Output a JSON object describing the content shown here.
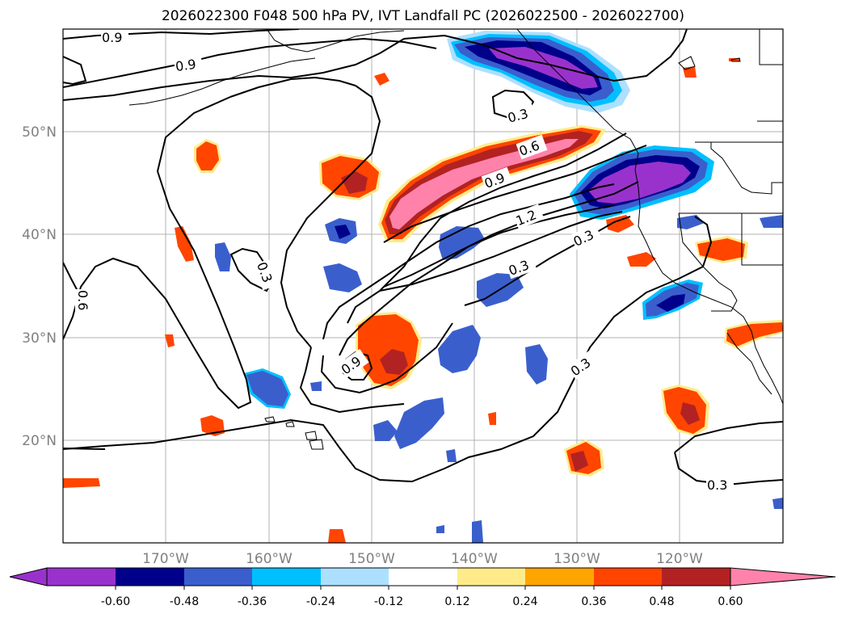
{
  "title": "2026022300 F048 500 hPa PV, IVT Landfall PC (2026022500 - 2026022700)",
  "axes": {
    "lon_ticks": [
      "170°W",
      "160°W",
      "150°W",
      "140°W",
      "130°W",
      "120°W"
    ],
    "lat_ticks": [
      "50°N",
      "40°N",
      "30°N",
      "20°N"
    ]
  },
  "colorbar": {
    "ticks": [
      "-0.60",
      "-0.48",
      "-0.36",
      "-0.24",
      "-0.12",
      "0.12",
      "0.24",
      "0.36",
      "0.48",
      "0.60"
    ],
    "colors": [
      "#9932CC",
      "#00008B",
      "#3A5FCD",
      "#00BFFF",
      "#ADDFFF",
      "#FFFFFF",
      "#FFEB8A",
      "#FFA500",
      "#FF4500",
      "#B22222",
      "#FF82AB"
    ]
  },
  "contour_labels": [
    "0.9",
    "0.9",
    "0.3",
    "0.6",
    "0.9",
    "1.2",
    "0.3",
    "0.3",
    "0.3",
    "0.9",
    "0.3",
    "0.6",
    "0.3"
  ]
}
